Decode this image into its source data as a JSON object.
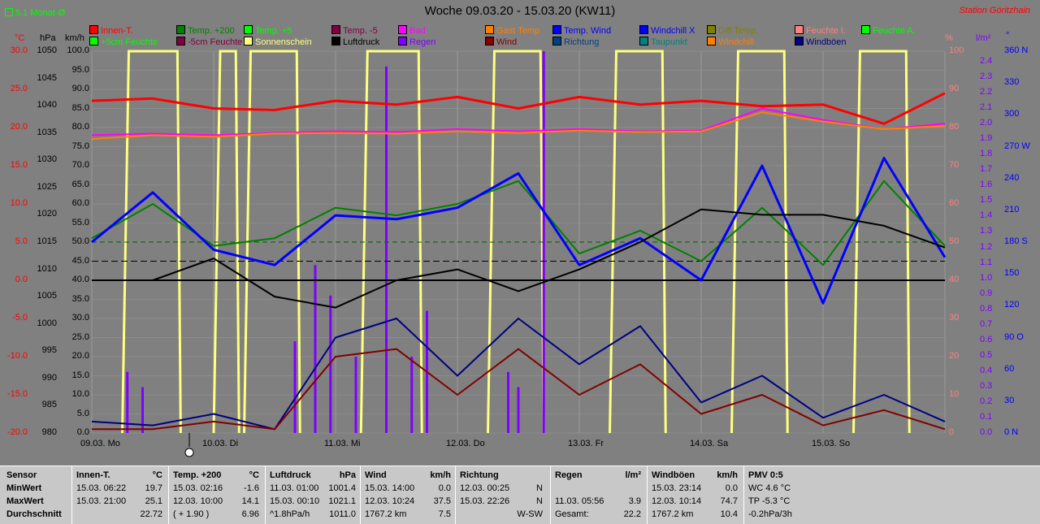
{
  "title": "Woche 09.03.20 - 15.03.20 (KW11)",
  "station": "Station Göritzhain",
  "monat_label": "5.1 Monat-Ø",
  "legend": [
    {
      "label": "Innen-T.",
      "color": "#ff0000"
    },
    {
      "label": "Temp. +200",
      "color": "#008000"
    },
    {
      "label": "Temp. +5",
      "color": "#00ff00"
    },
    {
      "label": "Temp. -5",
      "color": "#800040"
    },
    {
      "label": "Bad",
      "color": "#ff00ff"
    },
    {
      "label": "Gast Temp",
      "color": "#ff8000"
    },
    {
      "label": "Temp. Wind",
      "color": "#0000ff"
    },
    {
      "label": "Windchill X",
      "color": "#0000ff"
    },
    {
      "label": "Diff Temp.",
      "color": "#808000"
    },
    {
      "label": "Feuchte I.",
      "color": "#ff8080"
    },
    {
      "label": "Feuchte A.",
      "color": "#00ff00"
    },
    {
      "label": "+5cm Feuchte",
      "color": "#00ff00"
    },
    {
      "label": "-5cm Feuchte",
      "color": "#800040"
    },
    {
      "label": "Sonnenschein",
      "color": "#ffff80"
    },
    {
      "label": "Luftdruck",
      "color": "#000000"
    },
    {
      "label": "Regen",
      "color": "#8000ff"
    },
    {
      "label": "Wind",
      "color": "#800000"
    },
    {
      "label": "Richtung",
      "color": "#004080"
    },
    {
      "label": "Taupunkt",
      "color": "#008080"
    },
    {
      "label": "Windchill",
      "color": "#ff8000"
    },
    {
      "label": "Windböen",
      "color": "#000080"
    }
  ],
  "axes": {
    "temp_unit": "°C",
    "press_unit": "hPa",
    "wind_unit": "km/h",
    "hum_unit": "%",
    "rain_unit": "l/m²",
    "dir_unit": "°",
    "temp_ticks": [
      "30.0",
      "25.0",
      "20.0",
      "15.0",
      "10.0",
      "5.0",
      "0.0",
      "-5.0",
      "-10.0",
      "-15.0",
      "-20.0"
    ],
    "press_ticks": [
      "1050",
      "1045",
      "1040",
      "1035",
      "1030",
      "1025",
      "1020",
      "1015",
      "1010",
      "1005",
      "1000",
      "995",
      "990",
      "985",
      "980"
    ],
    "wind_ticks": [
      "100.0",
      "95.0",
      "90.0",
      "85.0",
      "80.0",
      "75.0",
      "70.0",
      "65.0",
      "60.0",
      "55.0",
      "50.0",
      "45.0",
      "40.0",
      "35.0",
      "30.0",
      "25.0",
      "20.0",
      "15.0",
      "10.0",
      "5.0",
      "0.0"
    ],
    "hum_ticks": [
      "100",
      "90",
      "80",
      "70",
      "60",
      "50",
      "40",
      "30",
      "20",
      "10",
      "0"
    ],
    "rain_ticks": [
      "2.4",
      "2.3",
      "2.2",
      "2.1",
      "2.0",
      "1.9",
      "1.8",
      "1.7",
      "1.6",
      "1.5",
      "1.4",
      "1.3",
      "1.2",
      "1.1",
      "1.0",
      "0.9",
      "0.8",
      "0.7",
      "0.6",
      "0.5",
      "0.4",
      "0.3",
      "0.2",
      "0.1",
      "0.0"
    ],
    "dir_ticks": [
      "360 N",
      "330",
      "300",
      "270 W",
      "240",
      "210",
      "180 S",
      "150",
      "120",
      "90 O",
      "60",
      "30",
      "0 N"
    ],
    "x_labels": [
      "09.03. Mo",
      "10.03. Di",
      "11.03. Mi",
      "12.03. Do",
      "13.03. Fr",
      "14.03. Sa",
      "15.03. So"
    ]
  },
  "chart_data": {
    "type": "line",
    "temp_range": [
      -20,
      30
    ],
    "press_range": [
      980,
      1050
    ],
    "wind_range": [
      0,
      100
    ],
    "hum_range": [
      0,
      100
    ],
    "rain_range": [
      0,
      2.5
    ],
    "grid": true,
    "x_days": [
      "09.03.",
      "10.03.",
      "11.03.",
      "12.03.",
      "13.03.",
      "14.03.",
      "15.03."
    ],
    "hours": [
      0,
      12,
      24,
      36,
      48,
      60,
      72,
      84,
      96,
      108,
      120,
      132,
      144,
      156,
      168
    ],
    "series": [
      {
        "name": "Innen-T.",
        "color": "#ff0000",
        "axis": "temp",
        "values": [
          23.5,
          23.8,
          22.5,
          22.3,
          23.5,
          23.0,
          24.0,
          22.5,
          24.0,
          23.0,
          23.5,
          22.8,
          23.0,
          20.5,
          24.5
        ]
      },
      {
        "name": "Bad",
        "color": "#ff00ff",
        "axis": "temp",
        "values": [
          19.0,
          19.2,
          19.0,
          19.3,
          19.5,
          19.4,
          19.8,
          19.5,
          19.8,
          19.5,
          19.6,
          22.5,
          21.0,
          19.8,
          20.5
        ]
      },
      {
        "name": "Gast Temp",
        "color": "#ff8000",
        "axis": "temp",
        "values": [
          18.5,
          19.0,
          18.8,
          19.2,
          19.3,
          19.2,
          19.5,
          19.3,
          19.6,
          19.4,
          19.5,
          22.0,
          20.8,
          19.8,
          20.2
        ]
      },
      {
        "name": "Temp. +200",
        "color": "#008000",
        "axis": "temp",
        "values": [
          5.5,
          10.0,
          4.5,
          5.5,
          9.5,
          8.5,
          10.0,
          13.0,
          3.5,
          6.5,
          2.5,
          9.5,
          2.0,
          13.0,
          4.5
        ]
      },
      {
        "name": "Temp. Wind",
        "color": "#0000ff",
        "axis": "temp",
        "values": [
          5.0,
          11.5,
          4.0,
          2.0,
          8.5,
          8.0,
          9.5,
          14.0,
          2.0,
          5.5,
          0.0,
          15.0,
          -3.0,
          16.0,
          3.0
        ]
      },
      {
        "name": "Luftdruck",
        "color": "#000000",
        "axis": "press",
        "values": [
          1008,
          1008,
          1012,
          1005,
          1003,
          1008,
          1010,
          1006,
          1010,
          1015,
          1021,
          1020,
          1020,
          1018,
          1014
        ]
      },
      {
        "name": "Windböen",
        "color": "#000080",
        "axis": "wind",
        "values": [
          3,
          2,
          5,
          1,
          25,
          30,
          15,
          30,
          18,
          28,
          8,
          15,
          4,
          10,
          3
        ]
      },
      {
        "name": "Wind",
        "color": "#800000",
        "axis": "wind",
        "values": [
          1,
          1,
          3,
          1,
          20,
          22,
          10,
          22,
          10,
          18,
          5,
          10,
          2,
          6,
          1
        ]
      }
    ],
    "rain_bars": [
      {
        "day_hour": 7,
        "value": 0.4
      },
      {
        "day_hour": 10,
        "value": 0.3
      },
      {
        "day_hour": 40,
        "value": 0.6
      },
      {
        "day_hour": 44,
        "value": 1.1
      },
      {
        "day_hour": 47,
        "value": 0.9
      },
      {
        "day_hour": 52,
        "value": 0.5
      },
      {
        "day_hour": 58,
        "value": 2.4
      },
      {
        "day_hour": 63,
        "value": 0.5
      },
      {
        "day_hour": 66,
        "value": 0.8
      },
      {
        "day_hour": 82,
        "value": 0.4
      },
      {
        "day_hour": 84,
        "value": 0.3
      },
      {
        "day_hour": 89,
        "value": 2.5
      }
    ],
    "sunshine_days": [
      [
        6,
        17.5
      ],
      [
        24,
        29
      ],
      [
        30,
        41
      ],
      [
        53,
        65
      ],
      [
        78,
        89
      ],
      [
        102,
        113
      ],
      [
        126,
        137
      ],
      [
        150,
        161
      ]
    ]
  },
  "table": [
    {
      "sensor": "Sensor",
      "name": "Innen-T.",
      "unit": "°C",
      "min_time": "15.03.  06:22",
      "min_val": "19.7",
      "max_time": "15.03.  21:00",
      "max_val": "25.1",
      "avg_left": "",
      "avg": "22.72"
    },
    {
      "sensor": "",
      "name": "Temp. +200",
      "unit": "°C",
      "min_time": "15.03.  02:16",
      "min_val": "-1.6",
      "max_time": "12.03.  10:00",
      "max_val": "14.1",
      "avg_left": "( + 1.90 )",
      "avg": "6.96"
    },
    {
      "sensor": "",
      "name": "Luftdruck",
      "unit": "hPa",
      "min_time": "11.03.  01:00",
      "min_val": "1001.4",
      "max_time": "15.03.  00:10",
      "max_val": "1021.1",
      "avg_left": "^1.8hPa/h",
      "avg": "1011.0"
    },
    {
      "sensor": "",
      "name": "Wind",
      "unit": "km/h",
      "min_time": "15.03.  14:00",
      "min_val": "0.0",
      "max_time": "12.03.  10:24",
      "max_val": "37.5",
      "avg_left": "1767.2 km",
      "avg": "7.5"
    }
  ],
  "table_labels": {
    "sensor": "Sensor",
    "min": "MinWert",
    "max": "MaxWert",
    "avg": "Durchschnitt"
  },
  "richtung": {
    "title": "Richtung",
    "min_time": "12.03.  00:25",
    "min_val": "N",
    "max_time": "15.03.  22:26",
    "max_val": "N",
    "avg": "W-SW"
  },
  "regen": {
    "title": "Regen",
    "unit": "l/m²",
    "max_time": "11.03.  05:56",
    "max_val": "3.9",
    "avg_left": "Gesamt:",
    "avg": "22.2"
  },
  "windboeen": {
    "title": "Windböen",
    "unit": "km/h",
    "min_time": "15.03.  23:14",
    "min_val": "0.0",
    "max_time": "12.03.  10:14",
    "max_val": "74.7",
    "avg_left": "1767.2 km",
    "avg": "10.4"
  },
  "pmv": {
    "title": "PMV 0:5",
    "l1": "WC 4.6 °C",
    "l2": "TP -5.3 °C",
    "l3": "-0.2hPa/3h"
  }
}
